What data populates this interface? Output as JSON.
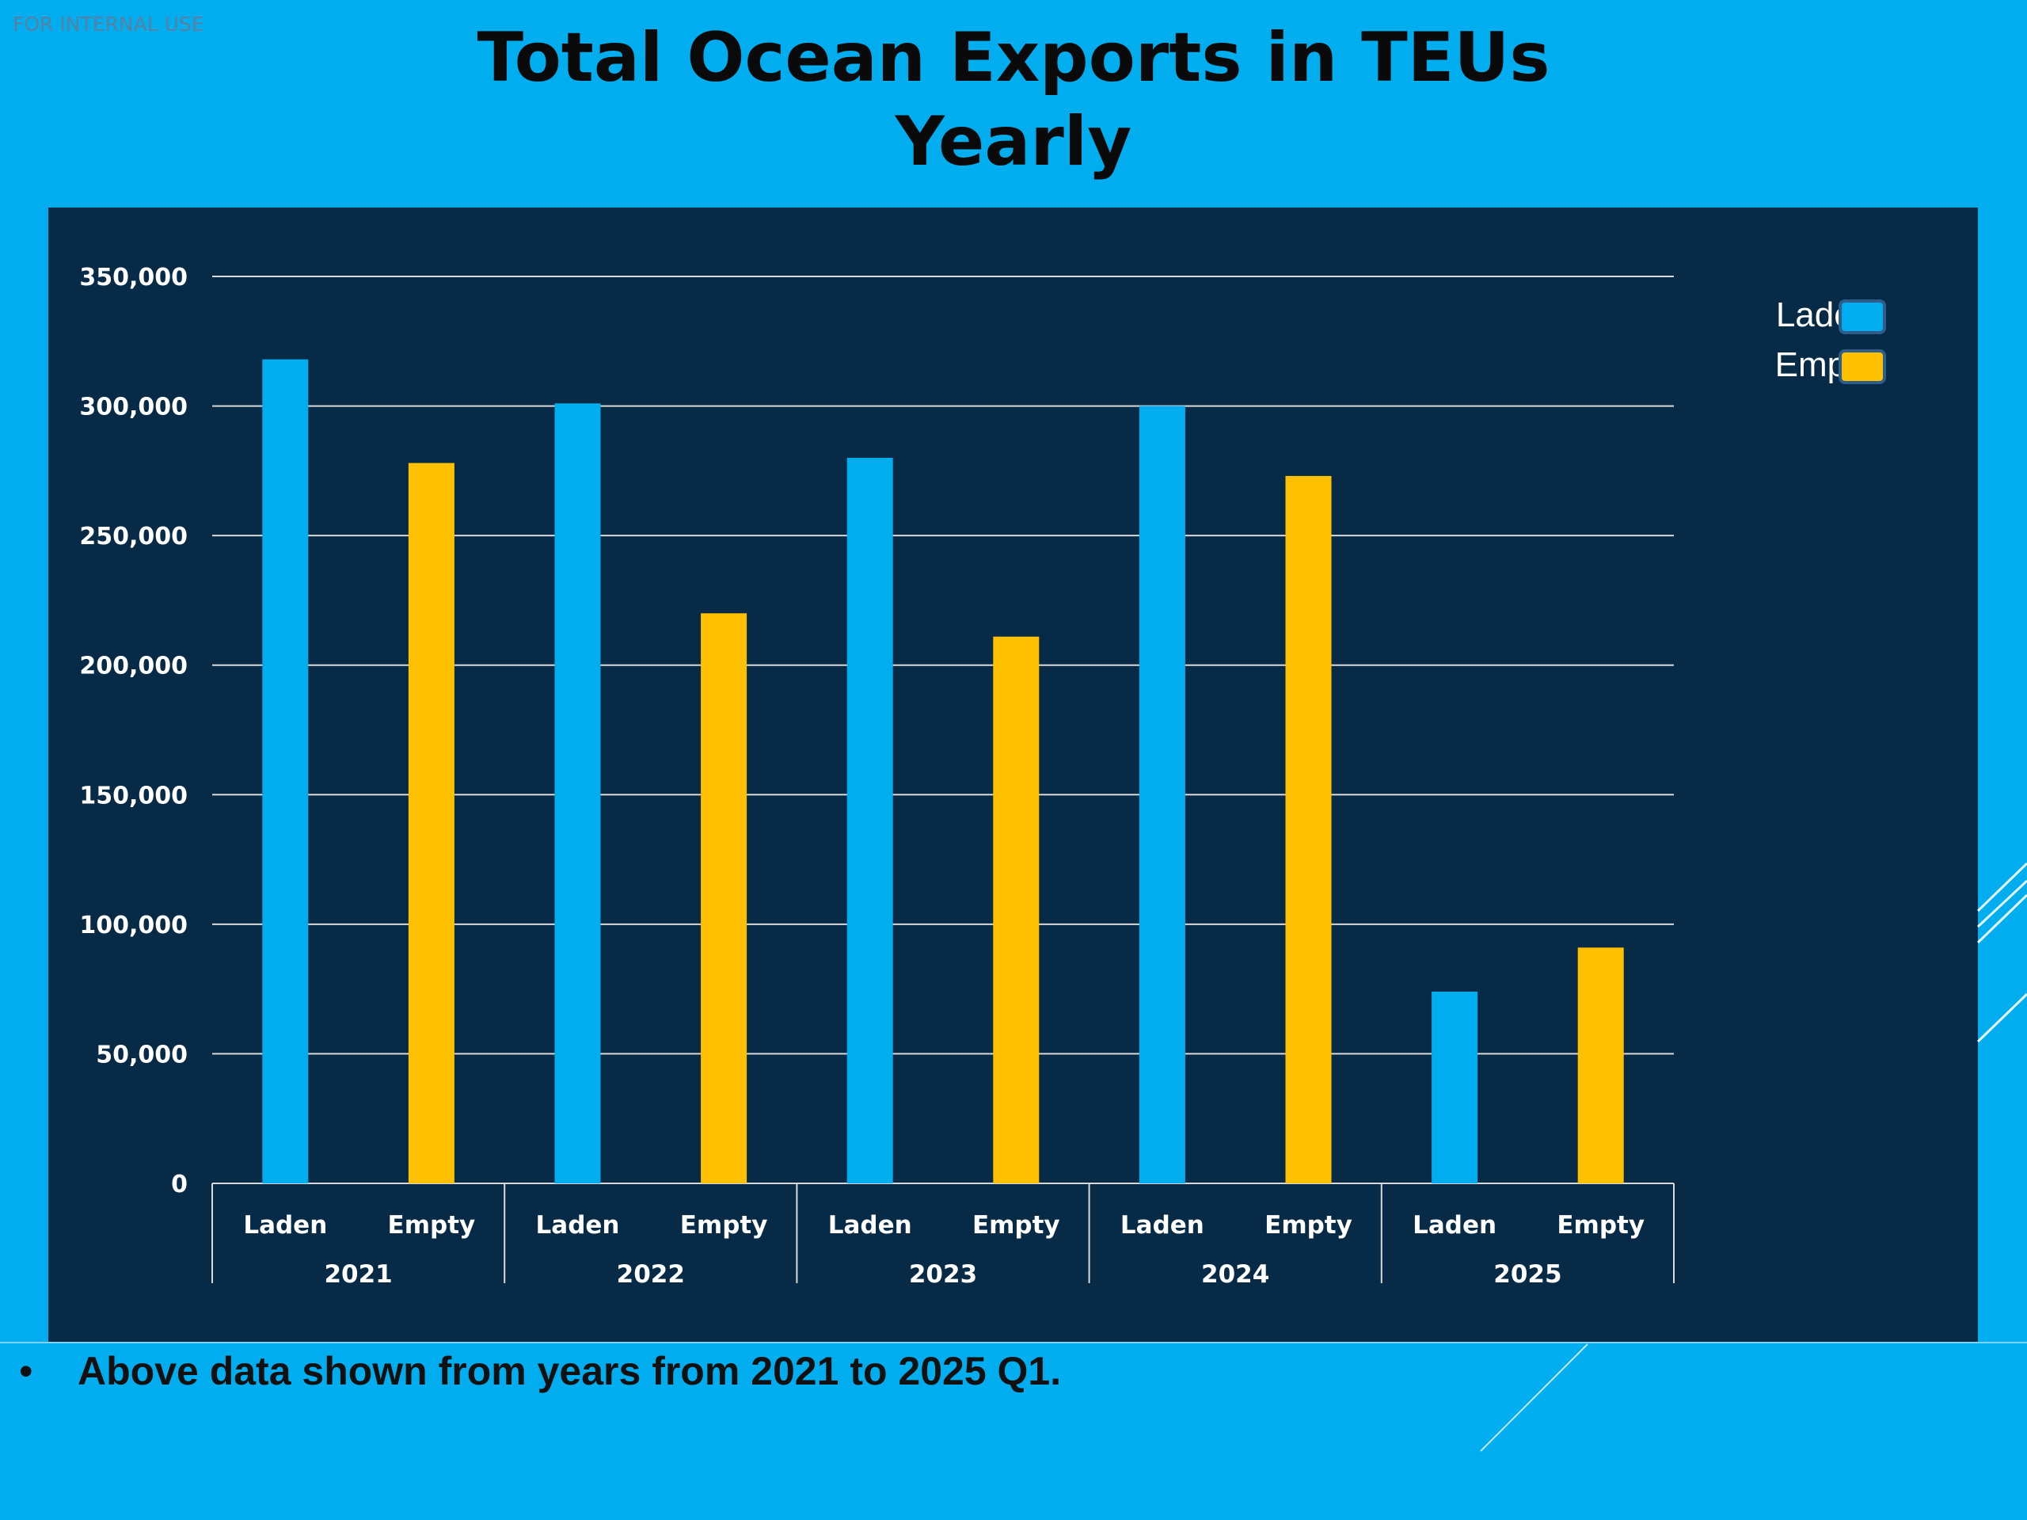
{
  "watermark": "FOR INTERNAL USE",
  "title_line1": "Total Ocean Exports in TEUs",
  "title_line2": "Yearly",
  "footnote": "Above data shown from years from 2021 to 2025 Q1.",
  "footnote_bullet": "•",
  "colors": {
    "background": "#00AEEF",
    "panel": "#072B47",
    "laden": "#00AEEF",
    "empty": "#FFC000"
  },
  "chart_data": {
    "type": "bar",
    "title": "Total Ocean Exports in TEUs Yearly",
    "groups": [
      "2021",
      "2022",
      "2023",
      "2024",
      "2025"
    ],
    "subcategories": [
      "Laden",
      "Empty"
    ],
    "series": [
      {
        "name": "Laden",
        "values": [
          318000,
          301000,
          280000,
          300000,
          74000
        ]
      },
      {
        "name": "Empty",
        "values": [
          278000,
          220000,
          211000,
          273000,
          91000
        ]
      }
    ],
    "yticks": [
      "0",
      "50,000",
      "100,000",
      "150,000",
      "200,000",
      "250,000",
      "300,000",
      "350,000"
    ],
    "ylim": [
      0,
      350000
    ],
    "grid": true,
    "legend_position": "top-right"
  }
}
